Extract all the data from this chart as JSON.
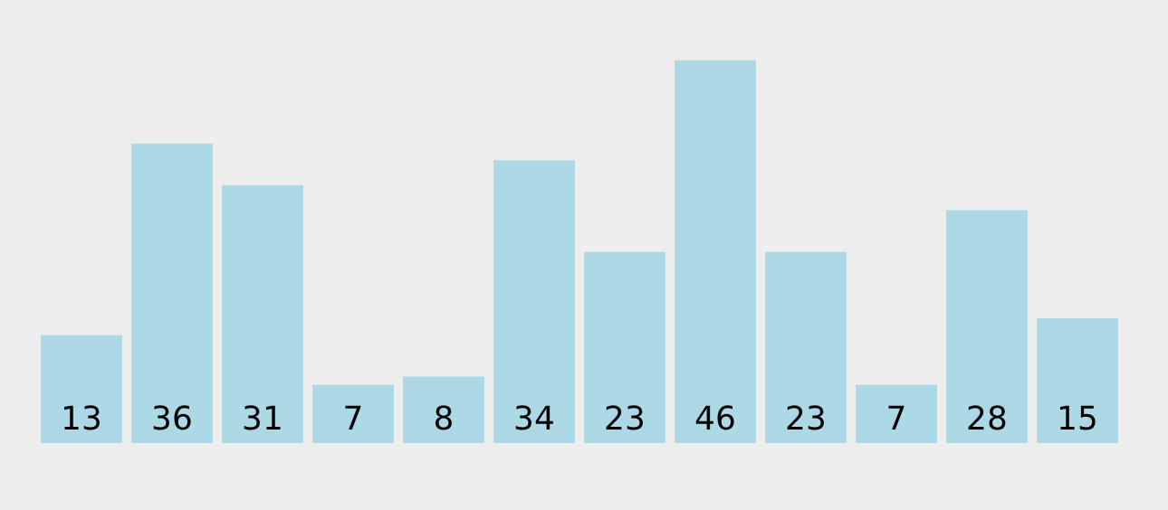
{
  "chart_data": {
    "type": "bar",
    "categories": [
      null,
      null,
      null,
      null,
      null,
      null,
      null,
      null,
      null,
      null,
      null,
      null
    ],
    "values": [
      13,
      36,
      31,
      7,
      8,
      34,
      23,
      46,
      23,
      7,
      28,
      15
    ],
    "color": "#add8e6",
    "data_labels": true,
    "tick_labels": false
  }
}
